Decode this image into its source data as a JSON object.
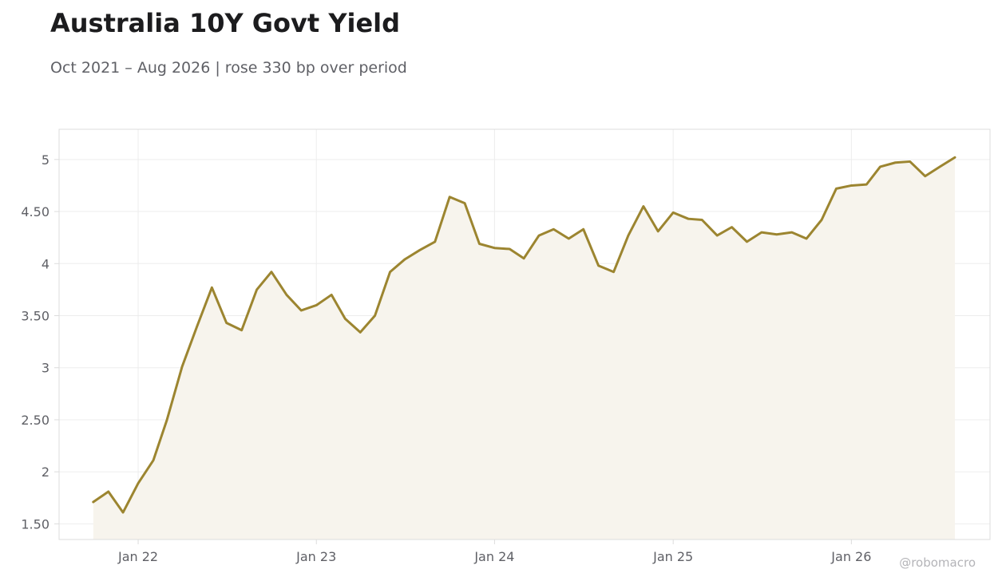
{
  "title": "Australia 10Y Govt Yield",
  "subtitle": "Oct 2021 – Aug 2026 | rose 330 bp over period",
  "credit": "@robomacro",
  "colors": {
    "line": "#9c8530",
    "fill": "#f7f4ed",
    "grid": "#ededed",
    "frame": "#dcdcdc",
    "text": "#5f6066"
  },
  "chart_data": {
    "type": "area",
    "title": "Australia 10Y Govt Yield",
    "subtitle": "Oct 2021 – Aug 2026 | rose 330 bp over period",
    "xlabel": "",
    "ylabel": "",
    "grid": true,
    "legend": "none",
    "xlim": [
      "2021-07-23",
      "2026-10-12"
    ],
    "ylim": [
      1.35,
      5.29
    ],
    "x_ticks": [
      {
        "date": "2022-01-01",
        "label": "Jan 22"
      },
      {
        "date": "2023-01-01",
        "label": "Jan 23"
      },
      {
        "date": "2024-01-01",
        "label": "Jan 24"
      },
      {
        "date": "2025-01-01",
        "label": "Jan 25"
      },
      {
        "date": "2026-01-01",
        "label": "Jan 26"
      }
    ],
    "y_ticks": [
      {
        "value": 1.5,
        "label": "1.50"
      },
      {
        "value": 2,
        "label": "2"
      },
      {
        "value": 2.5,
        "label": "2.50"
      },
      {
        "value": 3,
        "label": "3"
      },
      {
        "value": 3.5,
        "label": "3.50"
      },
      {
        "value": 4,
        "label": "4"
      },
      {
        "value": 4.5,
        "label": "4.50"
      },
      {
        "value": 5,
        "label": "5"
      }
    ],
    "series": [
      {
        "x": [
          "2021-10-01",
          "2021-11-01",
          "2021-12-01",
          "2022-01-01",
          "2022-02-01",
          "2022-03-01",
          "2022-04-01",
          "2022-05-01",
          "2022-06-01",
          "2022-07-01",
          "2022-08-01",
          "2022-09-01",
          "2022-10-01",
          "2022-11-01",
          "2022-12-01",
          "2023-01-01",
          "2023-02-01",
          "2023-03-01",
          "2023-04-01",
          "2023-05-01",
          "2023-06-01",
          "2023-07-01",
          "2023-08-01",
          "2023-09-01",
          "2023-10-01",
          "2023-11-01",
          "2023-12-01",
          "2024-01-01",
          "2024-02-01",
          "2024-03-01",
          "2024-04-01",
          "2024-05-01",
          "2024-06-01",
          "2024-07-01",
          "2024-08-01",
          "2024-09-01",
          "2024-10-01",
          "2024-11-01",
          "2024-12-01",
          "2025-01-01",
          "2025-02-01",
          "2025-03-01",
          "2025-04-01",
          "2025-05-01",
          "2025-06-01",
          "2025-07-01",
          "2025-08-01",
          "2025-09-01",
          "2025-10-01",
          "2025-11-01",
          "2025-12-01",
          "2026-01-01",
          "2026-02-01",
          "2026-03-01",
          "2026-04-01",
          "2026-05-01",
          "2026-06-01",
          "2026-07-01",
          "2026-08-01"
        ],
        "values": [
          1.71,
          1.81,
          1.61,
          1.89,
          2.11,
          2.5,
          3.01,
          3.39,
          3.77,
          3.43,
          3.36,
          3.75,
          3.92,
          3.7,
          3.55,
          3.6,
          3.7,
          3.47,
          3.34,
          3.5,
          3.92,
          4.04,
          4.13,
          4.21,
          4.64,
          4.58,
          4.19,
          4.15,
          4.14,
          4.05,
          4.27,
          4.33,
          4.24,
          4.33,
          3.98,
          3.92,
          4.27,
          4.55,
          4.31,
          4.49,
          4.43,
          4.42,
          4.27,
          4.35,
          4.21,
          4.3,
          4.28,
          4.3,
          4.24,
          4.42,
          4.72,
          4.75,
          4.76,
          4.93,
          4.97,
          4.98,
          4.84,
          4.93,
          5.02
        ]
      }
    ]
  }
}
